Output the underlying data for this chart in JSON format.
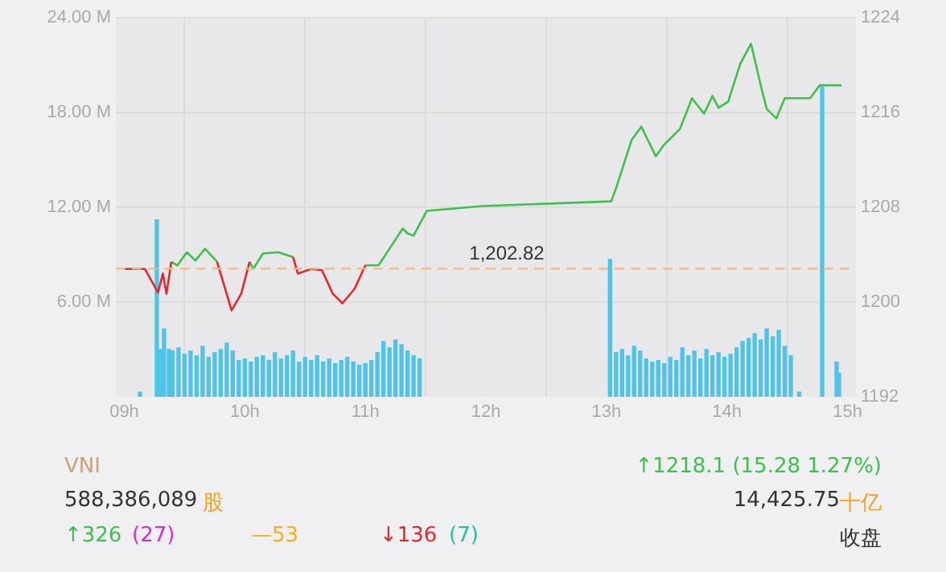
{
  "chart_data": {
    "type": "bar",
    "xlim": [
      8.93,
      15.07
    ],
    "xticks": [
      {
        "value": 9,
        "label": "09h"
      },
      {
        "value": 10,
        "label": "10h"
      },
      {
        "value": 11,
        "label": "11h"
      },
      {
        "value": 12,
        "label": "12h"
      },
      {
        "value": 13,
        "label": "13h"
      },
      {
        "value": 14,
        "label": "14h"
      },
      {
        "value": 15,
        "label": "15h"
      }
    ],
    "ylim": [
      0,
      24
    ],
    "yticks": [
      {
        "value": 6,
        "label": "6.00 M"
      },
      {
        "value": 12,
        "label": "12.00 M"
      },
      {
        "value": 18,
        "label": "18.00 M"
      },
      {
        "value": 24,
        "label": "24.00 M"
      }
    ],
    "y2lim": [
      1192,
      1224
    ],
    "y2ticks": [
      1192,
      1200,
      1208,
      1216,
      1224
    ],
    "grid": true,
    "series": [
      {
        "color": "#4fc3e8",
        "x": [
          9.13,
          9.27,
          9.3,
          9.33,
          9.37,
          9.4,
          9.45,
          9.5,
          9.55,
          9.6,
          9.65,
          9.7,
          9.75,
          9.8,
          9.85,
          9.9,
          9.95,
          10.0,
          10.05,
          10.1,
          10.15,
          10.2,
          10.25,
          10.3,
          10.35,
          10.4,
          10.45,
          10.5,
          10.55,
          10.6,
          10.65,
          10.7,
          10.75,
          10.8,
          10.85,
          10.9,
          10.95,
          11.0,
          11.05,
          11.1,
          11.15,
          11.2,
          11.25,
          11.3,
          11.35,
          11.4,
          11.45,
          13.03,
          13.08,
          13.13,
          13.18,
          13.23,
          13.28,
          13.33,
          13.38,
          13.43,
          13.48,
          13.53,
          13.58,
          13.63,
          13.68,
          13.73,
          13.78,
          13.83,
          13.88,
          13.93,
          13.98,
          14.03,
          14.08,
          14.13,
          14.18,
          14.23,
          14.28,
          14.33,
          14.38,
          14.43,
          14.48,
          14.53,
          14.6,
          14.79,
          14.91,
          14.93
        ],
        "values": [
          0.3,
          11.2,
          3.0,
          4.3,
          3.0,
          2.9,
          3.1,
          2.7,
          2.9,
          2.6,
          3.2,
          2.5,
          2.8,
          3.0,
          3.4,
          2.9,
          2.3,
          2.4,
          2.2,
          2.5,
          2.6,
          2.3,
          2.8,
          2.4,
          2.6,
          2.9,
          2.2,
          2.5,
          2.3,
          2.6,
          2.2,
          2.4,
          2.1,
          2.3,
          2.5,
          2.2,
          2.0,
          2.1,
          2.3,
          2.8,
          3.5,
          3.1,
          3.6,
          3.3,
          2.9,
          2.6,
          2.4,
          8.7,
          2.8,
          3.0,
          2.6,
          3.2,
          2.9,
          2.4,
          2.2,
          2.3,
          2.1,
          2.5,
          2.3,
          3.1,
          2.6,
          2.9,
          2.4,
          3.0,
          2.6,
          2.8,
          2.5,
          2.7,
          3.1,
          3.5,
          3.7,
          4.0,
          3.6,
          4.3,
          3.8,
          4.2,
          3.2,
          2.6,
          0.3,
          19.6,
          2.2,
          1.5
        ]
      },
      {
        "type": "line",
        "axis": "y2",
        "marker": "none",
        "line_style": "solid",
        "color": "#e0282e",
        "x": [
          9.0,
          9.17,
          9.28,
          9.32,
          9.35,
          9.39,
          9.44,
          9.52,
          9.59,
          9.67,
          9.77,
          9.89,
          9.97,
          10.04,
          10.07,
          10.15,
          10.28,
          10.4,
          10.44,
          10.55,
          10.64,
          10.73,
          10.81,
          10.91,
          11.0
        ],
        "values": [
          1202.8,
          1202.8,
          1200.8,
          1202.4,
          1200.7,
          1203.4,
          null,
          null,
          null,
          null,
          1203.4,
          1199.3,
          1200.7,
          1203.4,
          null,
          null,
          null,
          1203.8,
          1202.4,
          1202.8,
          1202.7,
          1200.7,
          1199.9,
          1201.1,
          1203.1
        ]
      },
      {
        "type": "line",
        "axis": "y2",
        "marker": "none",
        "line_style": "solid",
        "color": "#3cc14a",
        "x": [
          9.39,
          9.44,
          9.52,
          9.59,
          9.67,
          9.77,
          9.89,
          9.97,
          10.04,
          10.07,
          10.15,
          10.28,
          10.4,
          10.44,
          10.55,
          10.64,
          10.73,
          10.81,
          10.91,
          11.0,
          11.11,
          11.2,
          11.31,
          11.35,
          11.4,
          11.51,
          11.97,
          13.04,
          13.08,
          13.21,
          13.29,
          13.41,
          13.48,
          13.61,
          13.71,
          13.81,
          13.88,
          13.93,
          14.01,
          14.11,
          14.2,
          14.28,
          14.33,
          14.41,
          14.48,
          14.69,
          14.77,
          14.95
        ],
        "values": [
          1203.4,
          1203.1,
          1204.2,
          1203.5,
          1204.5,
          1203.4,
          null,
          null,
          1203.4,
          1202.8,
          1204.1,
          1204.2,
          1203.8,
          null,
          null,
          null,
          null,
          null,
          null,
          1203.1,
          1203.1,
          1204.5,
          1206.2,
          1205.8,
          1205.6,
          1207.7,
          1208.1,
          1208.5,
          1209.6,
          1213.7,
          1214.8,
          1212.3,
          1213.3,
          1214.6,
          1217.2,
          1215.9,
          1217.4,
          1216.4,
          1216.9,
          1220.1,
          1221.8,
          1218.3,
          1216.3,
          1215.5,
          1217.2,
          1217.2,
          1218.3,
          1218.3
        ]
      }
    ],
    "ref_lines": [
      {
        "axis": "y2",
        "value": 1202.82,
        "label": "1,202.82",
        "color": "#f5b97a",
        "line_style": "dashed"
      }
    ],
    "legend": false,
    "annotations": [
      "VNI",
      "↑1218.1 (15.28 1.27%)",
      "588,386,089",
      "股",
      "14,425.75",
      "十亿",
      "↑326",
      "(27)",
      "—53",
      "↓136",
      "(7)",
      "收盘"
    ]
  }
}
